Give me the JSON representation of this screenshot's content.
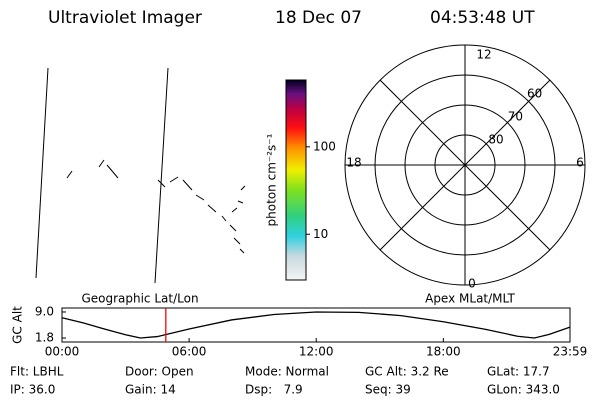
{
  "header": {
    "title": "Ultraviolet Imager",
    "date": "18 Dec 07",
    "time": "04:53:48 UT"
  },
  "colorbar": {
    "label": "photon cm⁻²s⁻¹",
    "log": true,
    "lim": [
      3,
      580
    ],
    "ticks": [
      10,
      100
    ]
  },
  "polar": {
    "hour_labels": [
      "12",
      "18",
      "6",
      "0"
    ],
    "rlim": [
      90,
      50
    ],
    "rings": [
      60,
      70,
      80
    ]
  },
  "chart_data": {
    "type": "line",
    "title_left": "Geographic Lat/Lon",
    "title_right": "Apex MLat/MLT",
    "ylabel": "GC Alt",
    "x": [
      0,
      1,
      2,
      3,
      3.7,
      4.5,
      6,
      8,
      10,
      12,
      14,
      16,
      18,
      20,
      21.5,
      22.3,
      23,
      23.98
    ],
    "values": [
      7.4,
      6.0,
      4.3,
      2.7,
      1.8,
      2.2,
      4.3,
      6.8,
      8.3,
      9.0,
      8.9,
      8.0,
      6.3,
      4.2,
      2.3,
      1.8,
      2.8,
      4.8
    ],
    "color": "#000000",
    "xlim": [
      0,
      23.98
    ],
    "xticks": [
      {
        "value": 0,
        "label": "00:00"
      },
      {
        "value": 6,
        "label": "06:00"
      },
      {
        "value": 12,
        "label": "12:00"
      },
      {
        "value": 18,
        "label": "18:00"
      },
      {
        "value": 23.98,
        "label": "23:59"
      }
    ],
    "ylim": [
      0.7,
      10.1
    ],
    "yticks": [
      1.8,
      {
        "value": 9,
        "label": "9.0"
      }
    ],
    "marker": {
      "x": 4.9,
      "color": "#ff0000"
    }
  },
  "info": [
    [
      "Flt: LBHL",
      "Door: Open",
      "Mode: Normal",
      "GC Alt: 3.2 Re",
      "GLat: 17.7"
    ],
    [
      "IP: 36.0",
      "Gain: 14",
      "Dsp:   7.9",
      "Seq: 39",
      "GLon: 343.0"
    ]
  ]
}
